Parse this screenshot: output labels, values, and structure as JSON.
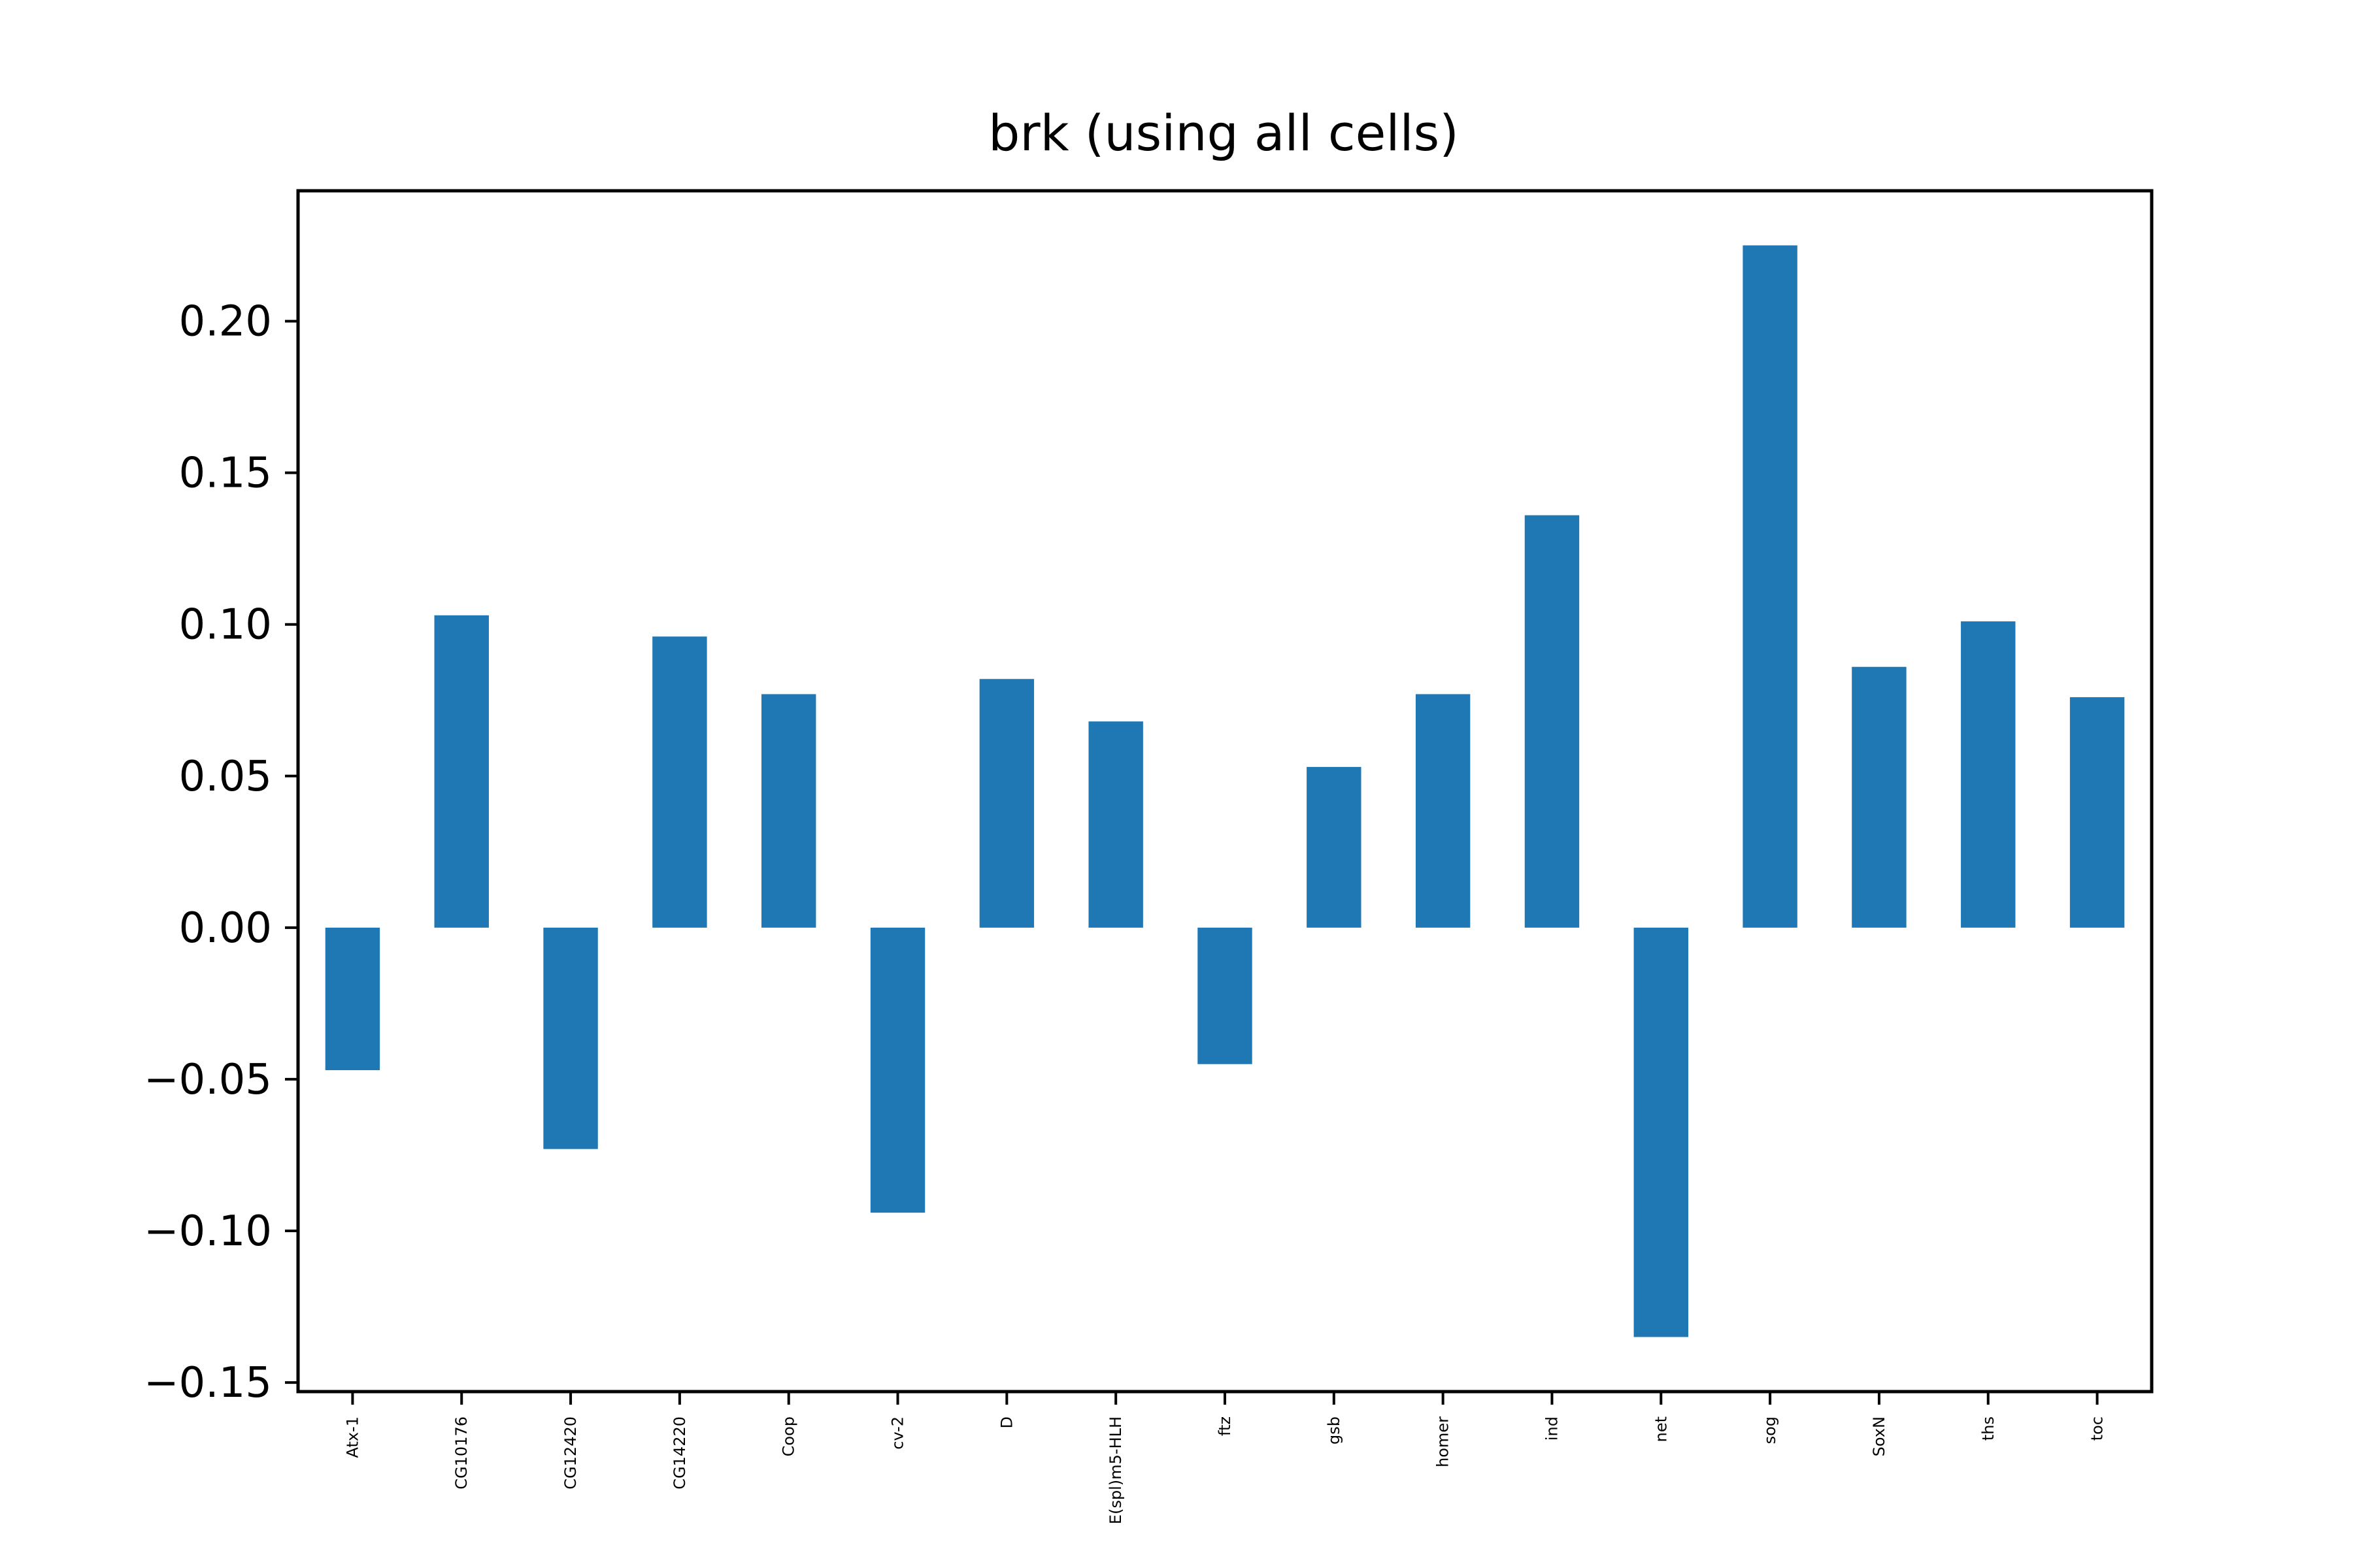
{
  "chart_data": {
    "type": "bar",
    "title": "brk (using all cells)",
    "xlabel": "",
    "ylabel": "",
    "categories": [
      "Atx-1",
      "CG10176",
      "CG12420",
      "CG14220",
      "Coop",
      "cv-2",
      "D",
      "E(spl)m5-HLH",
      "ftz",
      "gsb",
      "homer",
      "ind",
      "net",
      "sog",
      "SoxN",
      "ths",
      "toc"
    ],
    "values": [
      -0.047,
      0.103,
      -0.073,
      0.096,
      0.077,
      -0.094,
      0.082,
      0.068,
      -0.045,
      0.053,
      0.077,
      0.136,
      -0.135,
      0.225,
      0.086,
      0.101,
      0.076
    ],
    "ylim": [
      -0.153,
      0.243
    ],
    "yticks": [
      -0.15,
      -0.1,
      -0.05,
      0.0,
      0.05,
      0.1,
      0.15,
      0.2
    ],
    "ytick_labels": [
      "−0.15",
      "−0.10",
      "−0.05",
      "0.00",
      "0.05",
      "0.10",
      "0.15",
      "0.20"
    ],
    "bar_color": "#1f77b4",
    "grid": false,
    "legend": "none"
  }
}
